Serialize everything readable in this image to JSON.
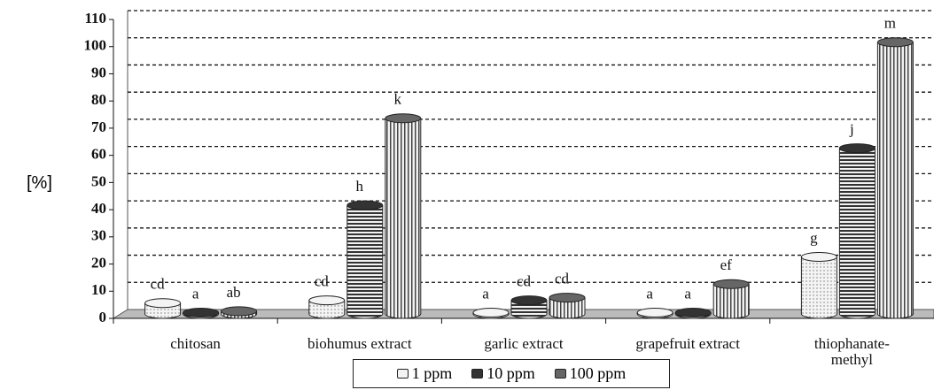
{
  "chart_data": {
    "type": "bar",
    "y_label": "[%]",
    "categories": [
      "chitosan",
      "biohumus extract",
      "garlic extract",
      "grapefruit extract",
      "thiophanate-methyl"
    ],
    "series": [
      {
        "name": "1 ppm",
        "color": "#f4f4f4",
        "pattern": "dots",
        "values": [
          4,
          5,
          0.5,
          0.5,
          21
        ],
        "annotations": [
          "cd",
          "cd",
          "a",
          "a",
          "g"
        ]
      },
      {
        "name": "10 ppm",
        "color": "#333333",
        "pattern": "horizontal",
        "values": [
          0.5,
          40,
          5,
          0.5,
          61
        ],
        "annotations": [
          "a",
          "h",
          "cd",
          "a",
          "j"
        ]
      },
      {
        "name": "100 ppm",
        "color": "#666666",
        "pattern": "vertical",
        "values": [
          1,
          72,
          6,
          11,
          100
        ],
        "annotations": [
          "ab",
          "k",
          "cd",
          "ef",
          "m"
        ]
      }
    ],
    "ylim": [
      0,
      110
    ],
    "yticks": [
      0,
      10,
      20,
      30,
      40,
      50,
      60,
      70,
      80,
      90,
      100,
      110
    ],
    "grid": true
  }
}
